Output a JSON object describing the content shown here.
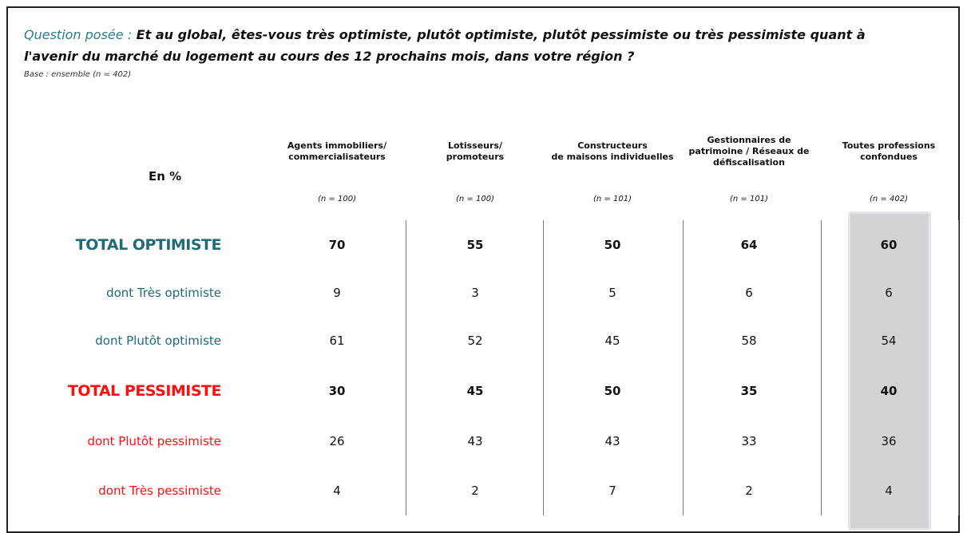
{
  "question": {
    "label": "Question posée :",
    "lines": [
      "Et au global, êtes-vous très optimiste, plutôt optimiste, plutôt pessimiste ou très pessimiste quant à",
      "l'avenir du marché du logement au cours des 12 prochains mois, dans votre région ?"
    ]
  },
  "base": "Base : ensemble (n = 402)",
  "table": {
    "corner": "En %",
    "columns": [
      {
        "name": [
          "Agents immobiliers/",
          "commercialisateurs"
        ],
        "n": "(n = 100)"
      },
      {
        "name": [
          "Lotisseurs/",
          "promoteurs"
        ],
        "n": "(n = 100)"
      },
      {
        "name": [
          "Constructeurs",
          "de maisons individuelles"
        ],
        "n": "(n = 101)"
      },
      {
        "name": [
          "Gestionnaires de",
          "patrimoine / Réseaux de",
          "défiscalisation"
        ],
        "n": "(n = 101)"
      },
      {
        "name": [
          "Toutes professions",
          "confondues"
        ],
        "n": "(n = 402)"
      }
    ],
    "rows": [
      {
        "label": "TOTAL OPTIMISTE",
        "values": [
          70,
          55,
          50,
          64,
          60
        ]
      },
      {
        "label": "dont Très optimiste",
        "values": [
          9,
          3,
          5,
          6,
          6
        ]
      },
      {
        "label": "dont Plutôt optimiste",
        "values": [
          61,
          52,
          45,
          58,
          54
        ]
      },
      {
        "label": "TOTAL PESSIMISTE",
        "values": [
          30,
          45,
          50,
          35,
          40
        ]
      },
      {
        "label": "dont Plutôt pessimiste",
        "values": [
          26,
          43,
          43,
          33,
          36
        ]
      },
      {
        "label": "dont Très pessimiste",
        "values": [
          4,
          2,
          7,
          2,
          4
        ]
      }
    ]
  }
}
